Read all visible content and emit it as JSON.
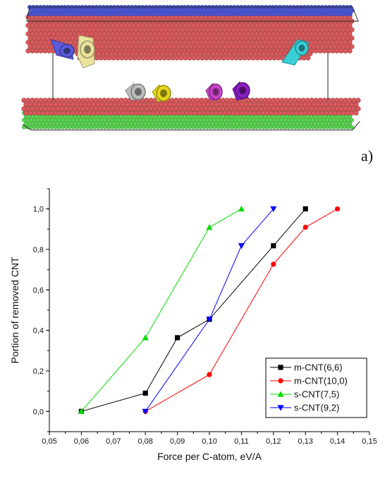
{
  "figure": {
    "panel_label": "a)",
    "simulation_scene": {
      "description_icon": "nanotube-simulation-scene",
      "colors": {
        "top_layer": "#4a55d8",
        "substrate": "#d9595c",
        "bottom_layer": "#56d64d",
        "cnt_blue": "#5a5adf",
        "cnt_cream": "#eae39c",
        "cnt_cyan": "#38d0d6",
        "cnt_grey": "#bdbdbd",
        "cnt_yellow": "#e5d51c",
        "cnt_magenta": "#c844c8",
        "cnt_purple": "#8a1fc0"
      }
    }
  },
  "chart_data": {
    "type": "line",
    "title": "",
    "xlabel": "Force per C-atom, eV/A",
    "ylabel": "Portion of removed CNT",
    "xlim": [
      0.05,
      0.15
    ],
    "ylim": [
      -0.1,
      1.1
    ],
    "x_ticks": [
      0.05,
      0.06,
      0.07,
      0.08,
      0.09,
      0.1,
      0.11,
      0.12,
      0.13,
      0.14,
      0.15
    ],
    "x_tick_labels": [
      "0,05",
      "0,06",
      "0,07",
      "0,08",
      "0,09",
      "0,10",
      "0,11",
      "0,12",
      "0,13",
      "0,14",
      "0,15"
    ],
    "y_ticks": [
      0.0,
      0.2,
      0.4,
      0.6,
      0.8,
      1.0
    ],
    "y_tick_labels": [
      "0,0",
      "0,2",
      "0,4",
      "0,6",
      "0,8",
      "1,0"
    ],
    "legend_position": "bottom-right",
    "grid": false,
    "series": [
      {
        "name": "m-CNT(6,6)",
        "color": "#000000",
        "marker": "square",
        "x": [
          0.06,
          0.08,
          0.09,
          0.1,
          0.12,
          0.13
        ],
        "y": [
          0.0,
          0.09,
          0.364,
          0.455,
          0.818,
          1.0
        ]
      },
      {
        "name": "m-CNT(10,0)",
        "color": "#ff0000",
        "marker": "circle",
        "x": [
          0.08,
          0.1,
          0.12,
          0.13,
          0.14
        ],
        "y": [
          0.0,
          0.182,
          0.727,
          0.909,
          1.0
        ]
      },
      {
        "name": "s-CNT(7,5)",
        "color": "#00dd00",
        "marker": "triangle-up",
        "x": [
          0.06,
          0.08,
          0.1,
          0.11
        ],
        "y": [
          0.0,
          0.364,
          0.909,
          1.0
        ]
      },
      {
        "name": "s-CNT(9,2)",
        "color": "#0000ff",
        "marker": "triangle-down",
        "x": [
          0.08,
          0.1,
          0.11,
          0.12
        ],
        "y": [
          0.0,
          0.455,
          0.818,
          1.0
        ]
      }
    ]
  }
}
